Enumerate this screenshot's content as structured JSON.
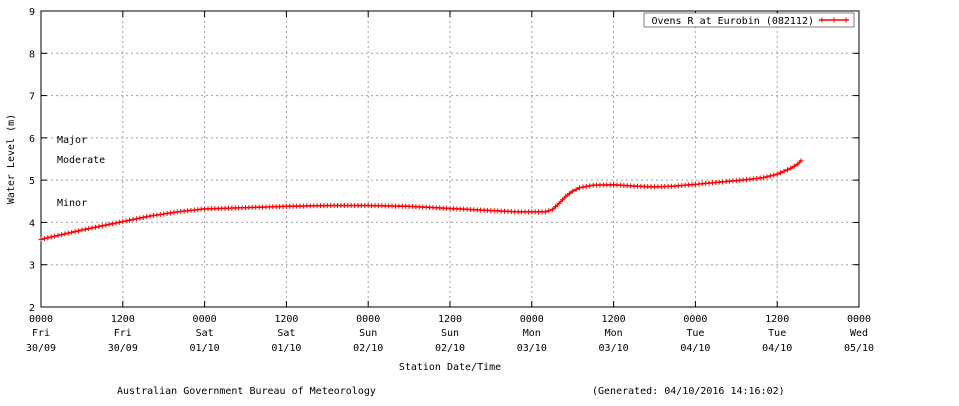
{
  "chart_data": {
    "type": "line",
    "title": "",
    "xlabel": "Station Date/Time",
    "ylabel": "Water Level (m)",
    "ylim": [
      2,
      9
    ],
    "yticks": [
      2,
      3,
      4,
      5,
      6,
      7,
      8,
      9
    ],
    "grid": true,
    "legend_position": "top-right",
    "x_ticks": [
      {
        "time": "0000",
        "day": "Fri",
        "date": "30/09"
      },
      {
        "time": "1200",
        "day": "Fri",
        "date": "30/09"
      },
      {
        "time": "0000",
        "day": "Sat",
        "date": "01/10"
      },
      {
        "time": "1200",
        "day": "Sat",
        "date": "01/10"
      },
      {
        "time": "0000",
        "day": "Sun",
        "date": "02/10"
      },
      {
        "time": "1200",
        "day": "Sun",
        "date": "02/10"
      },
      {
        "time": "0000",
        "day": "Mon",
        "date": "03/10"
      },
      {
        "time": "1200",
        "day": "Mon",
        "date": "03/10"
      },
      {
        "time": "0000",
        "day": "Tue",
        "date": "04/10"
      },
      {
        "time": "1200",
        "day": "Tue",
        "date": "04/10"
      },
      {
        "time": "0000",
        "day": "Wed",
        "date": "05/10"
      }
    ],
    "x_range_hours": [
      0,
      120
    ],
    "flood_levels": [
      {
        "label": "Major"
      },
      {
        "label": "Moderate"
      },
      {
        "label": "Minor"
      }
    ],
    "series": [
      {
        "name": "Ovens R at Eurobin (082112)",
        "color": "#ff0000",
        "points": [
          [
            0,
            3.6
          ],
          [
            6,
            3.82
          ],
          [
            12,
            4.02
          ],
          [
            16,
            4.15
          ],
          [
            20,
            4.25
          ],
          [
            24,
            4.32
          ],
          [
            30,
            4.35
          ],
          [
            36,
            4.38
          ],
          [
            42,
            4.4
          ],
          [
            48,
            4.4
          ],
          [
            54,
            4.38
          ],
          [
            60,
            4.33
          ],
          [
            66,
            4.28
          ],
          [
            70,
            4.25
          ],
          [
            74,
            4.25
          ],
          [
            75,
            4.3
          ],
          [
            76,
            4.45
          ],
          [
            77,
            4.62
          ],
          [
            78,
            4.74
          ],
          [
            79,
            4.82
          ],
          [
            81,
            4.88
          ],
          [
            84,
            4.89
          ],
          [
            87,
            4.86
          ],
          [
            90,
            4.84
          ],
          [
            93,
            4.86
          ],
          [
            96,
            4.9
          ],
          [
            100,
            4.96
          ],
          [
            104,
            5.02
          ],
          [
            106,
            5.06
          ],
          [
            108,
            5.14
          ],
          [
            110,
            5.28
          ],
          [
            111,
            5.38
          ],
          [
            111.5,
            5.46
          ]
        ]
      }
    ]
  },
  "footer": {
    "agency": "Australian Government Bureau of Meteorology",
    "generated": "(Generated: 04/10/2016 14:16:02)"
  }
}
